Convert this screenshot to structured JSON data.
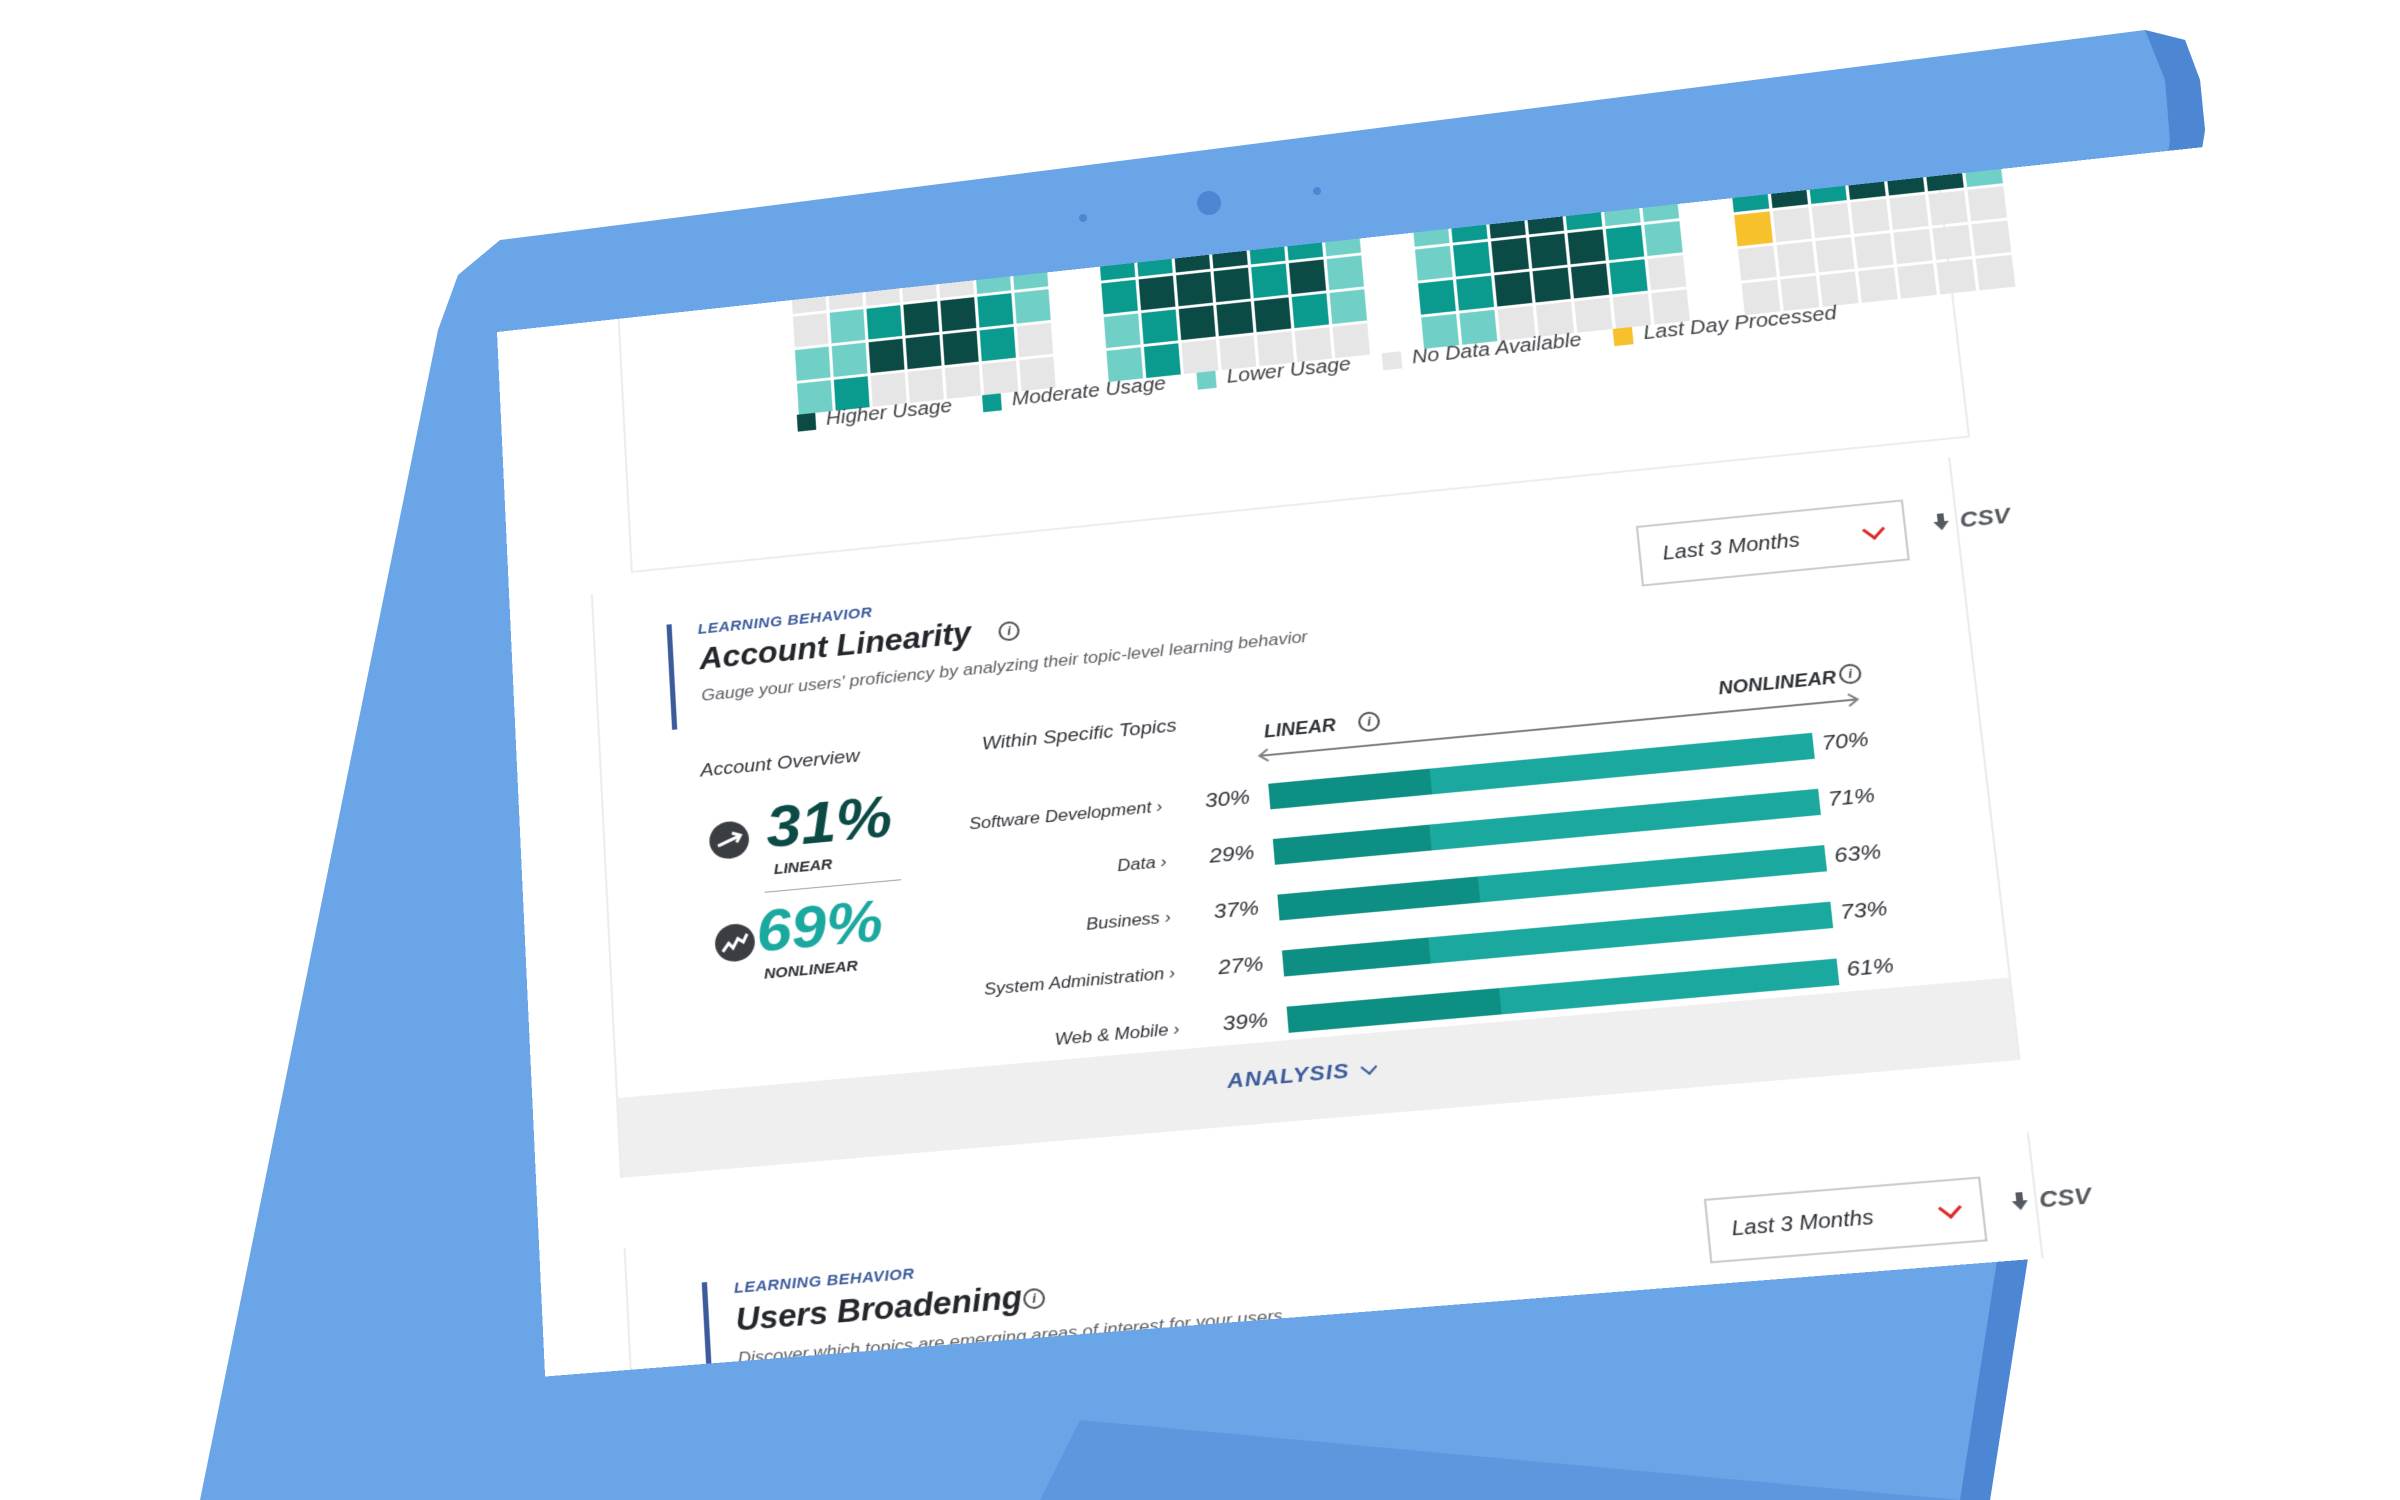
{
  "colors": {
    "higher": "#0b4a45",
    "moderate": "#0a9a8e",
    "lower": "#70d0c8",
    "none": "#e6e6e6",
    "last": "#f6c12b",
    "accent": "#3c5b9c",
    "linear_bar": "#0d8f84",
    "nonlinear_bar": "#1aa89f",
    "device_bezel": "#65a1e6"
  },
  "heatmap": {
    "legend": [
      {
        "key": "higher",
        "label": "Higher Usage"
      },
      {
        "key": "moderate",
        "label": "Moderate Usage"
      },
      {
        "key": "lower",
        "label": "Lower Usage"
      },
      {
        "key": "none",
        "label": "No Data Available"
      },
      {
        "key": "last",
        "label": "Last Day Processed"
      }
    ],
    "months": [
      {
        "rows": [
          [
            "n",
            "n",
            "n",
            "n",
            "n",
            "n",
            "n"
          ],
          [
            "n",
            "n",
            "n",
            "n",
            "n",
            "n",
            "n"
          ],
          [
            "n",
            "n",
            "n",
            "n",
            "n",
            "l",
            "l"
          ],
          [
            "n",
            "l",
            "m",
            "h",
            "h",
            "m",
            "l"
          ],
          [
            "l",
            "l",
            "h",
            "h",
            "h",
            "m",
            "n"
          ],
          [
            "l",
            "m",
            "n",
            "n",
            "n",
            "n",
            "n"
          ]
        ]
      },
      {
        "rows": [
          [
            "n",
            "n",
            "n",
            "n",
            "n",
            "n",
            "n"
          ],
          [
            "n",
            "n",
            "n",
            "n",
            "n",
            "l",
            "l"
          ],
          [
            "m",
            "m",
            "h",
            "h",
            "m",
            "m",
            "l"
          ],
          [
            "m",
            "h",
            "h",
            "h",
            "m",
            "h",
            "l"
          ],
          [
            "l",
            "m",
            "h",
            "h",
            "h",
            "m",
            "l"
          ],
          [
            "l",
            "m",
            "n",
            "n",
            "n",
            "n",
            "n"
          ]
        ]
      },
      {
        "rows": [
          [
            "n",
            "n",
            "n",
            "n",
            "n",
            "n",
            "n"
          ],
          [
            "n",
            "n",
            "l",
            "m",
            "h",
            "h",
            "l"
          ],
          [
            "l",
            "m",
            "h",
            "h",
            "m",
            "l",
            "l"
          ],
          [
            "l",
            "m",
            "h",
            "h",
            "h",
            "m",
            "l"
          ],
          [
            "m",
            "m",
            "h",
            "h",
            "h",
            "m",
            "n"
          ],
          [
            "l",
            "l",
            "n",
            "n",
            "n",
            "n",
            "n"
          ]
        ]
      },
      {
        "rows": [
          [
            "n",
            "n",
            "n",
            "n",
            "n",
            "n",
            "n"
          ],
          [
            "l",
            "l",
            "m",
            "h",
            "h",
            "m",
            "l"
          ],
          [
            "m",
            "h",
            "m",
            "h",
            "h",
            "h",
            "l"
          ],
          [
            "y",
            "n",
            "n",
            "n",
            "n",
            "n",
            "n"
          ],
          [
            "n",
            "n",
            "n",
            "n",
            "n",
            "n",
            "n"
          ],
          [
            "n",
            "n",
            "n",
            "n",
            "n",
            "n",
            "n"
          ]
        ]
      }
    ]
  },
  "linearity": {
    "eyebrow": "LEARNING BEHAVIOR",
    "title": "Account Linearity",
    "subtitle": "Gauge your users' proficiency by analyzing their topic-level learning behavior",
    "dropdown": "Last 3 Months",
    "csv": "CSV",
    "overview_label": "Account Overview",
    "topics_label": "Within Specific Topics",
    "linear_pct": "31%",
    "linear_caption": "LINEAR",
    "nonlinear_pct": "69%",
    "nonlinear_caption": "NONLINEAR",
    "axis_linear": "LINEAR",
    "axis_nonlinear": "NONLINEAR",
    "analysis": "ANALYSIS"
  },
  "chart_data": {
    "type": "bar",
    "categories": [
      "Software Development",
      "Data",
      "Business",
      "System Administration",
      "Web & Mobile"
    ],
    "series": [
      {
        "name": "LINEAR",
        "values": [
          30,
          29,
          37,
          27,
          39
        ]
      },
      {
        "name": "NONLINEAR",
        "values": [
          70,
          71,
          63,
          73,
          61
        ]
      }
    ],
    "value_labels_linear": [
      "30%",
      "29%",
      "37%",
      "27%",
      "39%"
    ],
    "value_labels_nonlinear": [
      "70%",
      "71%",
      "63%",
      "73%",
      "61%"
    ],
    "stacked": true,
    "orientation": "horizontal",
    "xlim": [
      0,
      100
    ]
  },
  "broadening": {
    "eyebrow": "LEARNING BEHAVIOR",
    "title": "Users Broadening",
    "subtitle": "Discover which topics are emerging areas of interest for your users",
    "dropdown": "Last 3 Months",
    "csv": "CSV"
  }
}
